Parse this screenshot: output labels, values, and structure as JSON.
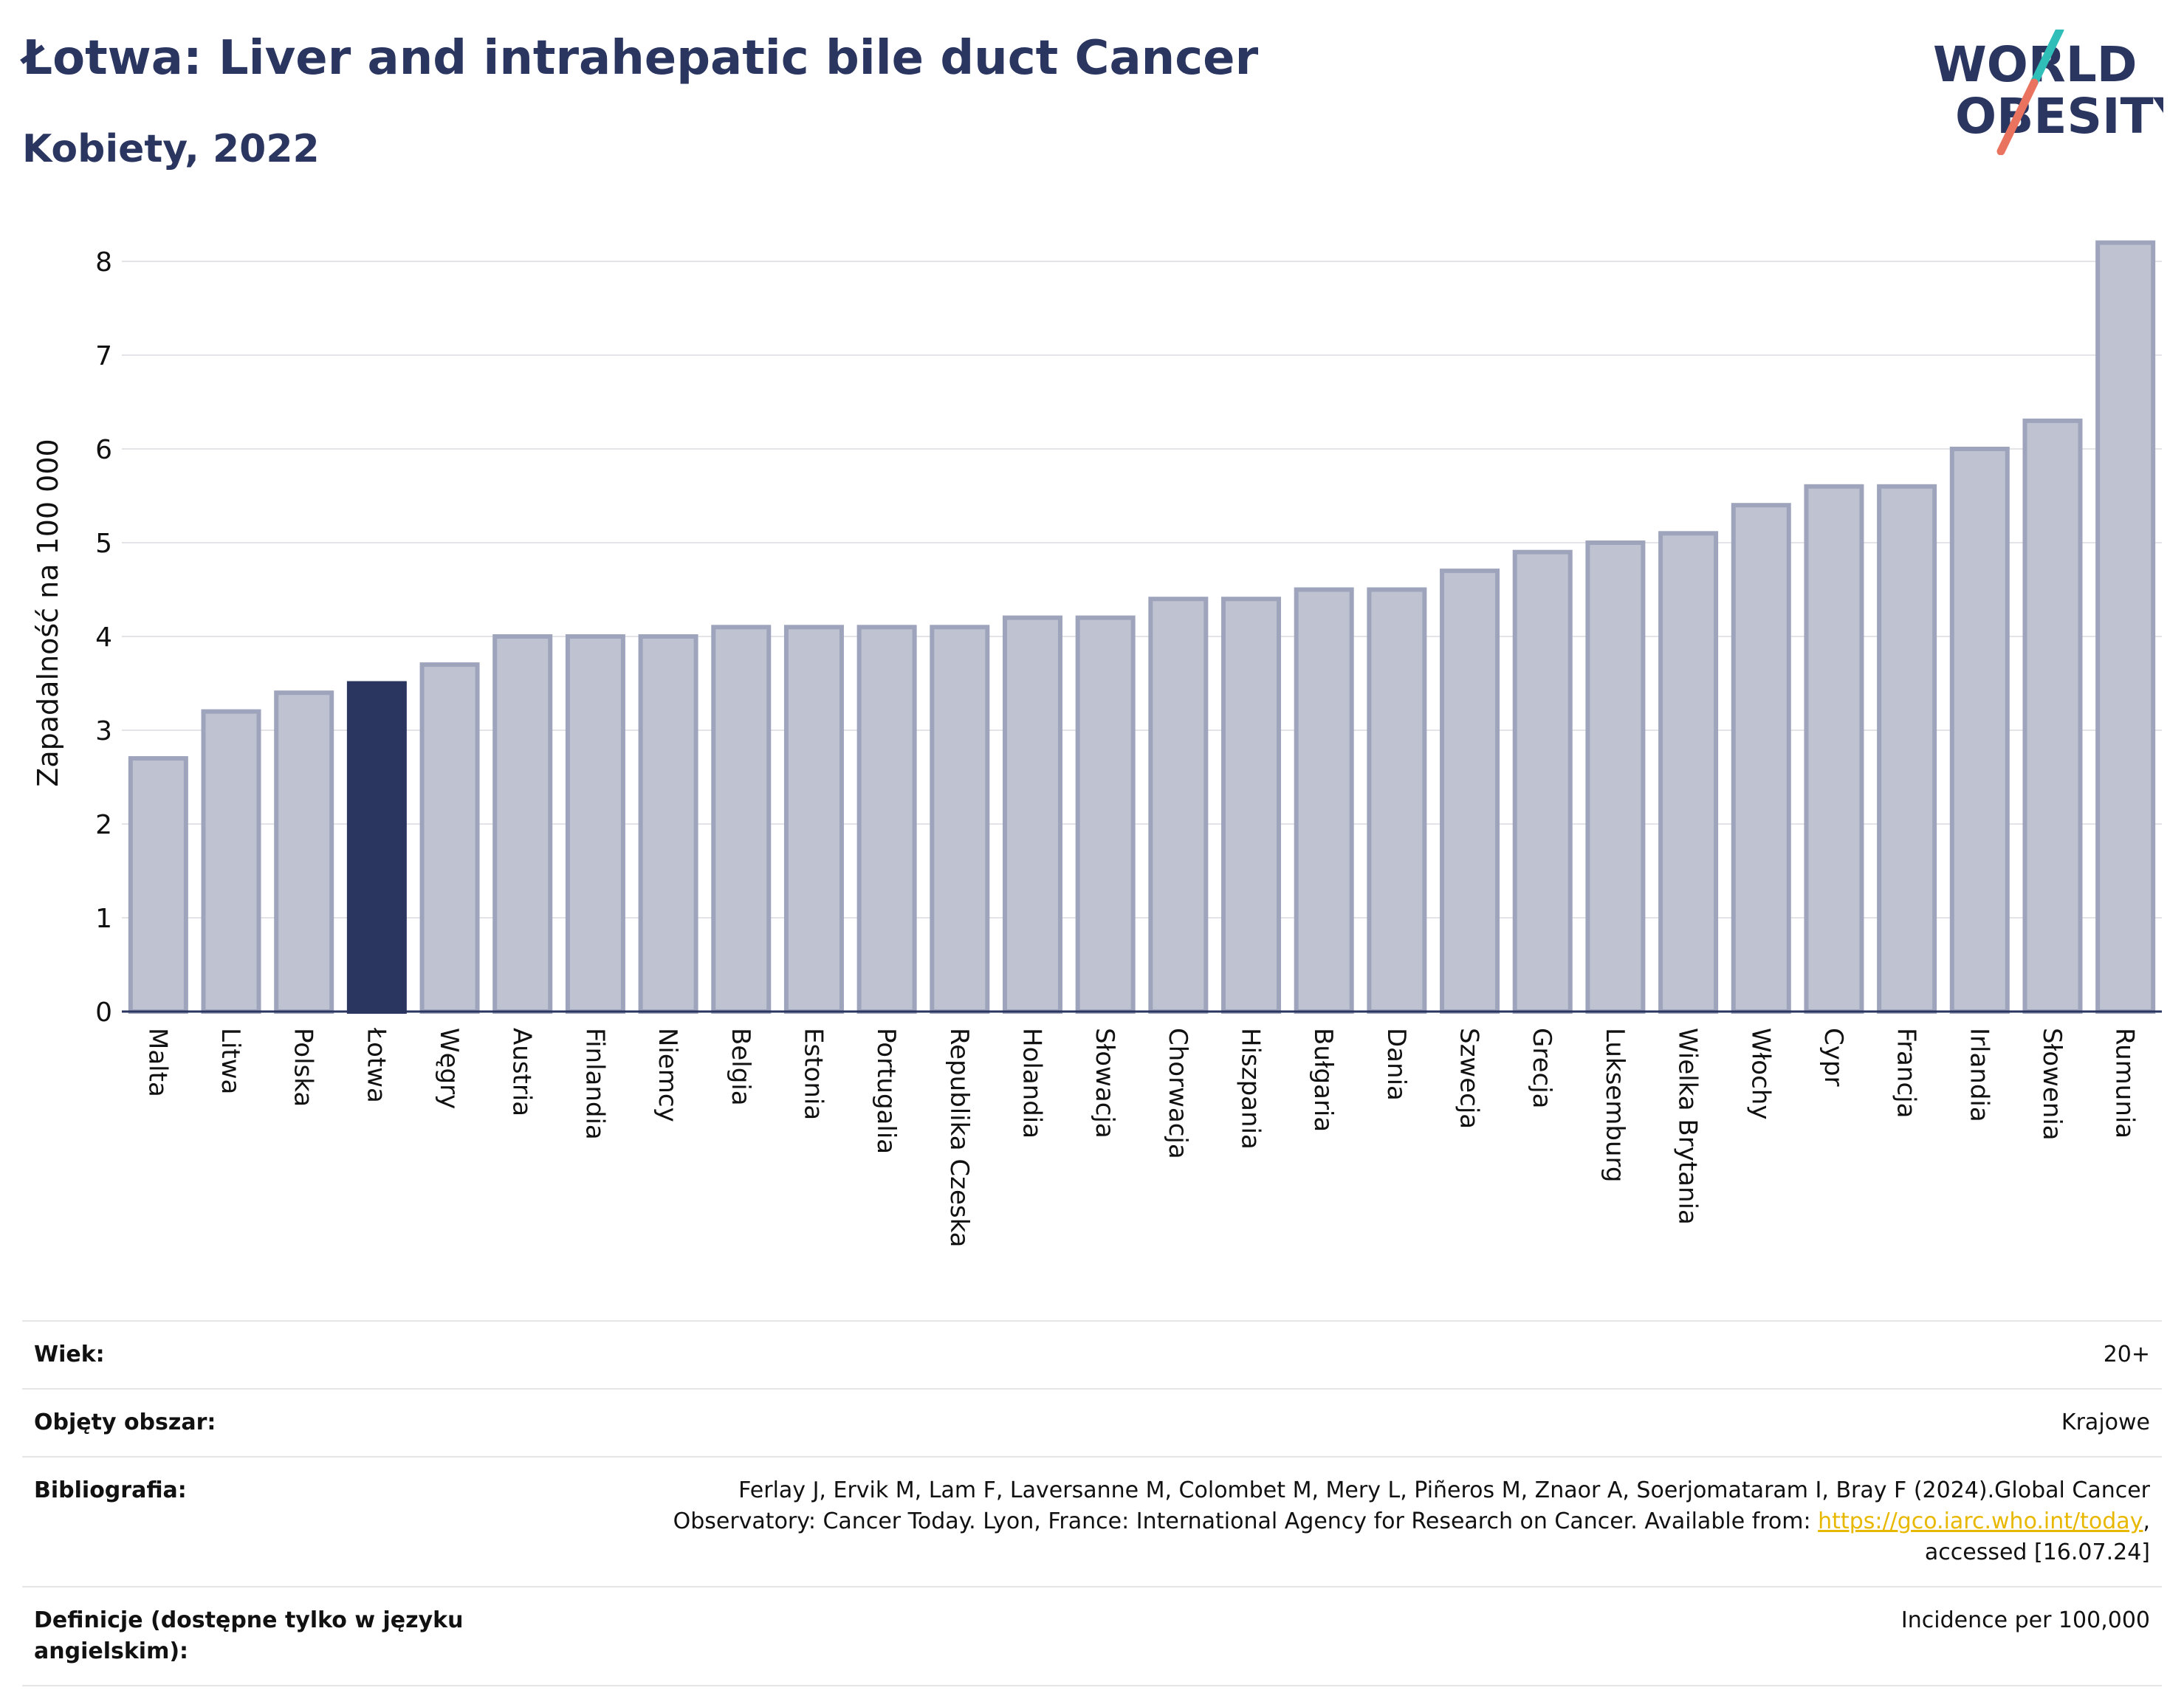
{
  "header": {
    "title": "Łotwa: Liver and intrahepatic bile duct Cancer",
    "subtitle": "Kobiety, 2022"
  },
  "logo": {
    "line1": "WORLD",
    "line2": "OBESITY"
  },
  "chart_data": {
    "type": "bar",
    "ylabel": "Zapadalność na 100 000",
    "xlabel": "",
    "ylim": [
      0,
      8.5
    ],
    "yticks": [
      0,
      1,
      2,
      3,
      4,
      5,
      6,
      7,
      8
    ],
    "grid": true,
    "highlight": "Łotwa",
    "colors": {
      "bar": "#bfc3d1",
      "bar_edge": "#9ea4bb",
      "highlight": "#2a3560"
    },
    "categories": [
      "Malta",
      "Litwa",
      "Polska",
      "Łotwa",
      "Węgry",
      "Austria",
      "Finlandia",
      "Niemcy",
      "Belgia",
      "Estonia",
      "Portugalia",
      "Republika Czeska",
      "Holandia",
      "Słowacja",
      "Chorwacja",
      "Hiszpania",
      "Bułgaria",
      "Dania",
      "Szwecja",
      "Grecja",
      "Luksemburg",
      "Wielka Brytania",
      "Włochy",
      "Cypr",
      "Francja",
      "Irlandia",
      "Słowenia",
      "Rumunia"
    ],
    "values": [
      2.7,
      3.2,
      3.4,
      3.5,
      3.7,
      4.0,
      4.0,
      4.0,
      4.1,
      4.1,
      4.1,
      4.1,
      4.2,
      4.2,
      4.4,
      4.4,
      4.5,
      4.5,
      4.7,
      4.9,
      5.0,
      5.1,
      5.4,
      5.6,
      5.6,
      6.0,
      6.3,
      8.2
    ]
  },
  "meta": {
    "age_label": "Wiek:",
    "age_value": "20+",
    "area_label": "Objęty obszar:",
    "area_value": "Krajowe",
    "bib_label": "Bibliografia:",
    "bib_line1": "Ferlay J, Ervik M, Lam F, Laversanne M, Colombet M, Mery L, Piñeros M, Znaor A, Soerjomataram I, Bray F (2024).Global Cancer",
    "bib_line2": "Observatory: Cancer Today. Lyon, France: International Agency for Research on Cancer. Available from: ",
    "bib_link": "https://gco.iarc.who.int/today",
    "bib_line2_end": ",",
    "bib_line3": "accessed [16.07.24]",
    "def_label": "Definicje (dostępne tylko w języku angielskim):",
    "def_value": "Incidence per 100,000"
  }
}
